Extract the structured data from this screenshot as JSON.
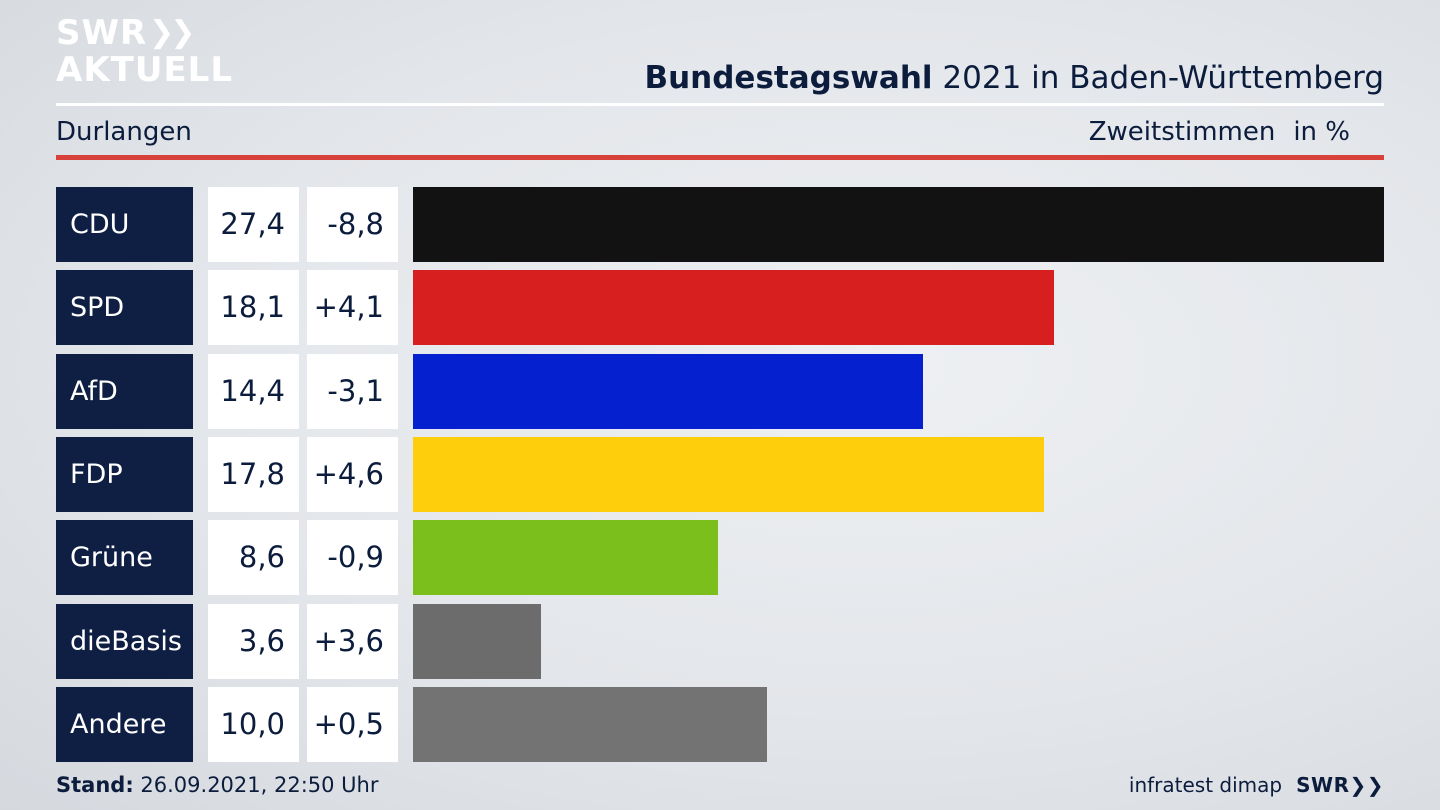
{
  "logo": {
    "line1": "SWR",
    "chevrons": "❯❯",
    "line2": "AKTUELL"
  },
  "header": {
    "title_bold": "Bundestagswahl",
    "title_rest": " 2021 in Baden-Württemberg",
    "subtitle": "Durlangen",
    "metric": "Zweitstimmen",
    "unit": "in %"
  },
  "chart_data": {
    "type": "bar",
    "orientation": "horizontal",
    "title": "Bundestagswahl 2021 in Baden-Württemberg",
    "categories": [
      "CDU",
      "SPD",
      "AfD",
      "FDP",
      "Grüne",
      "dieBasis",
      "Andere"
    ],
    "series": [
      {
        "name": "Zweitstimmen",
        "values": [
          27.4,
          18.1,
          14.4,
          17.8,
          8.6,
          3.6,
          10.0
        ]
      }
    ],
    "value_labels": [
      "27,4",
      "18,1",
      "14,4",
      "17,8",
      "8,6",
      "3,6",
      "10,0"
    ],
    "diffs": [
      "-8,8",
      "+4,1",
      "-3,1",
      "+4,6",
      "-0,9",
      "+3,6",
      "+0,5"
    ],
    "colors": [
      "#121212",
      "#d81f20",
      "#0521cf",
      "#fecd0c",
      "#7abf1b",
      "#6c6c6c",
      "#737374"
    ],
    "xlim": [
      0,
      27.4
    ],
    "grid": false,
    "legend": "none"
  },
  "footer": {
    "stand_label": "Stand:",
    "stand_value": " 26.09.2021, 22:50 Uhr",
    "source": "infratest dimap",
    "brand": "SWR❯❯"
  }
}
